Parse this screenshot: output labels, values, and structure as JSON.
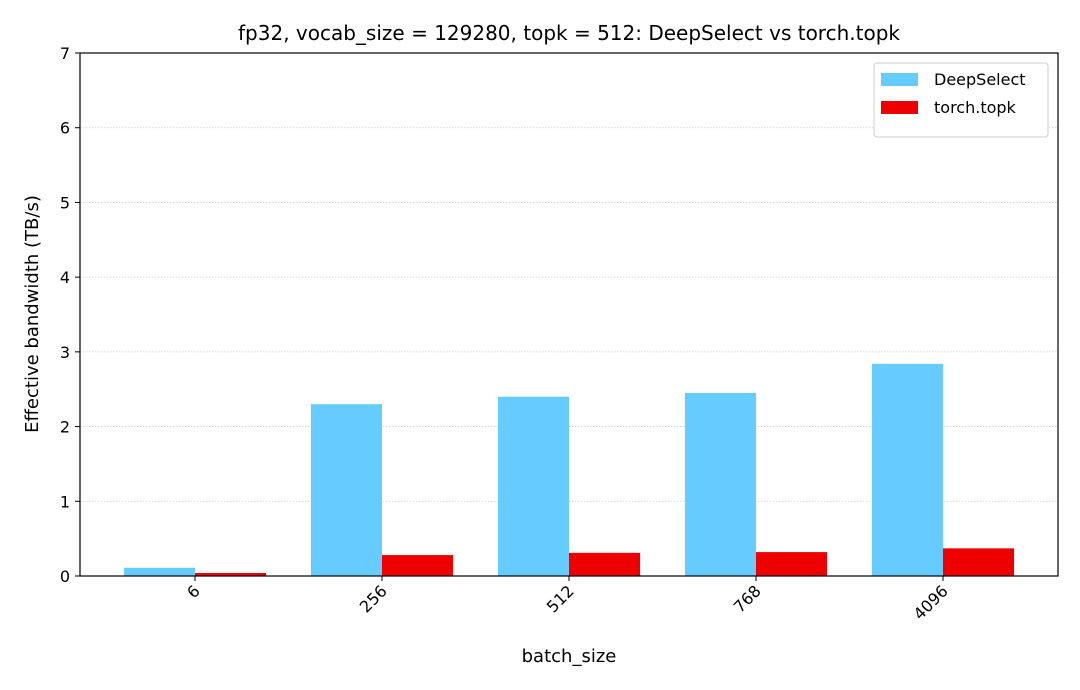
{
  "chart_data": {
    "type": "bar",
    "title": "fp32, vocab_size = 129280, topk = 512: DeepSelect vs torch.topk",
    "x_label": "batch_size",
    "y_label": "Effective bandwidth (TB/s)",
    "categories": [
      "6",
      "256",
      "512",
      "768",
      "4096"
    ],
    "series": [
      {
        "name": "DeepSelect",
        "color": "#66ccff",
        "values": [
          0.11,
          2.3,
          2.4,
          2.45,
          2.84
        ]
      },
      {
        "name": "torch.topk",
        "color": "#ee0000",
        "values": [
          0.04,
          0.28,
          0.31,
          0.32,
          0.37
        ]
      }
    ],
    "ylim": [
      0,
      7
    ],
    "yticks": [
      0,
      1,
      2,
      3,
      4,
      5,
      6,
      7
    ],
    "grid": true,
    "legend": "upper right"
  }
}
